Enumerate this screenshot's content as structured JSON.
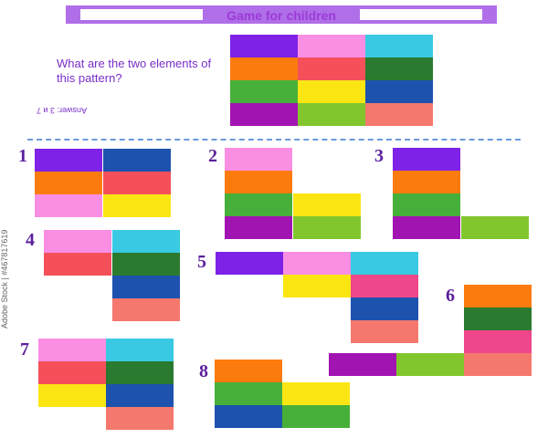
{
  "header": {
    "title": "Game for children"
  },
  "question": "What are the two elements of this pattern?",
  "answer": "Answer: 3 и 7",
  "colors": {
    "purple": "#7d22e6",
    "pink": "#f98ee3",
    "cyan": "#39c9e3",
    "orange": "#fc7b0f",
    "red": "#f5505a",
    "darkgreen": "#2a7a2f",
    "green": "#47b03a",
    "yellow": "#fbe614",
    "blue": "#1d52ae",
    "magenta": "#a214b2",
    "lime": "#82c62d",
    "salmon": "#f4786d",
    "hotpink": "#f0468a"
  },
  "options": [
    {
      "number": "1"
    },
    {
      "number": "2"
    },
    {
      "number": "3"
    },
    {
      "number": "4"
    },
    {
      "number": "5"
    },
    {
      "number": "6"
    },
    {
      "number": "7"
    },
    {
      "number": "8"
    }
  ],
  "watermark": "Adobe Stock | #467817619"
}
